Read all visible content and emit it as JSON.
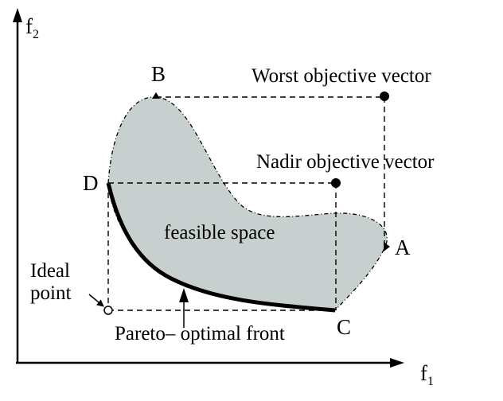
{
  "axes": {
    "x_label": "f",
    "x_subscript": "1",
    "y_label": "f",
    "y_subscript": "2"
  },
  "points": {
    "A": "A",
    "B": "B",
    "C": "C",
    "D": "D"
  },
  "labels": {
    "worst": "Worst objective vector",
    "nadir": "Nadir objective vector",
    "feasible": "feasible space",
    "ideal_line1": "Ideal",
    "ideal_line2": "point",
    "pareto": "Pareto– optimal front"
  },
  "colors": {
    "region_fill": "#c8d0cf",
    "line": "#000000",
    "background": "#ffffff"
  }
}
